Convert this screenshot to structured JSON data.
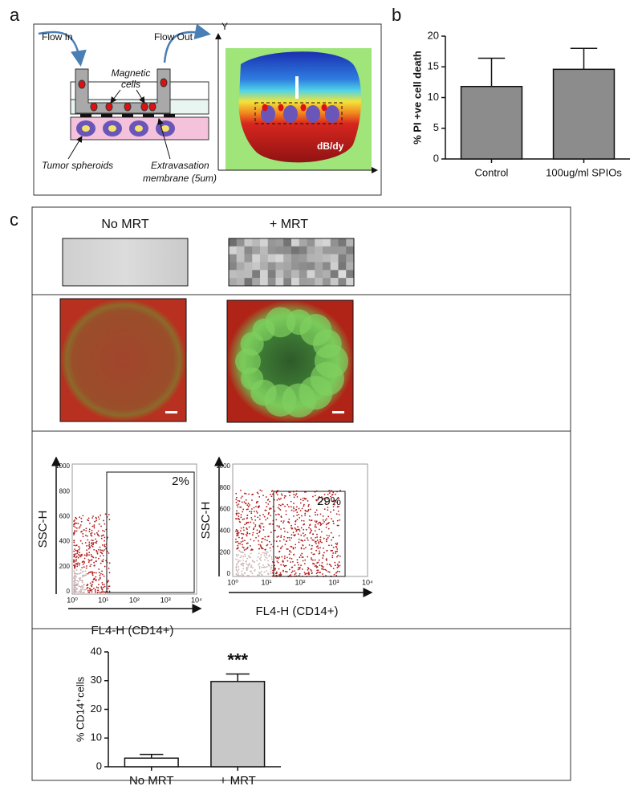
{
  "panel_labels": [
    "a",
    "b",
    "c"
  ],
  "diagram": {
    "flow_in": "Flow In",
    "flow_out": "Flow Out",
    "magnetic_cells": [
      "Magnetic",
      "cells"
    ],
    "tumor": "Tumor spheroids",
    "membrane": [
      "Extravasation",
      "membrane (5um)"
    ],
    "y_axis": "Y",
    "gradient": "dB/dy"
  },
  "conditions": [
    "No MRT",
    "+ MRT"
  ],
  "flow_cytometry": {
    "y_label": "SSC-H",
    "x_label": "FL4-H (CD14+)",
    "yticks": [
      0,
      200,
      400,
      600,
      800,
      1000
    ],
    "xticks": [
      {
        "value": 1,
        "label": "10⁰"
      },
      {
        "value": 10,
        "label": "10¹"
      },
      {
        "value": 100,
        "label": "10²"
      },
      {
        "value": 1000,
        "label": "10³"
      },
      {
        "value": 10000,
        "label": "10⁴"
      }
    ],
    "gates": [
      "2%",
      "29%"
    ]
  },
  "chart_data": [
    {
      "type": "bar",
      "y_label": "% PI +ve cell death",
      "categories": [
        "Control",
        "100ug/ml SPIOs"
      ],
      "values": [
        11.8,
        14.6
      ],
      "errors": [
        4.6,
        3.4
      ],
      "colors": [
        "#8c8c8c",
        "#8c8c8c"
      ],
      "ylim": [
        0,
        20
      ],
      "yticks": [
        0,
        5,
        10,
        15,
        20
      ]
    },
    {
      "type": "bar",
      "y_label": "% CD14⁺cells",
      "categories": [
        "No MRT",
        "+ MRT"
      ],
      "values": [
        3,
        29.7
      ],
      "errors": [
        1.3,
        2.6
      ],
      "colors": [
        "#ffffff",
        "#c8c8c8"
      ],
      "ylim": [
        0,
        40
      ],
      "yticks": [
        0,
        10,
        20,
        30,
        40
      ],
      "annotation": "***"
    }
  ]
}
